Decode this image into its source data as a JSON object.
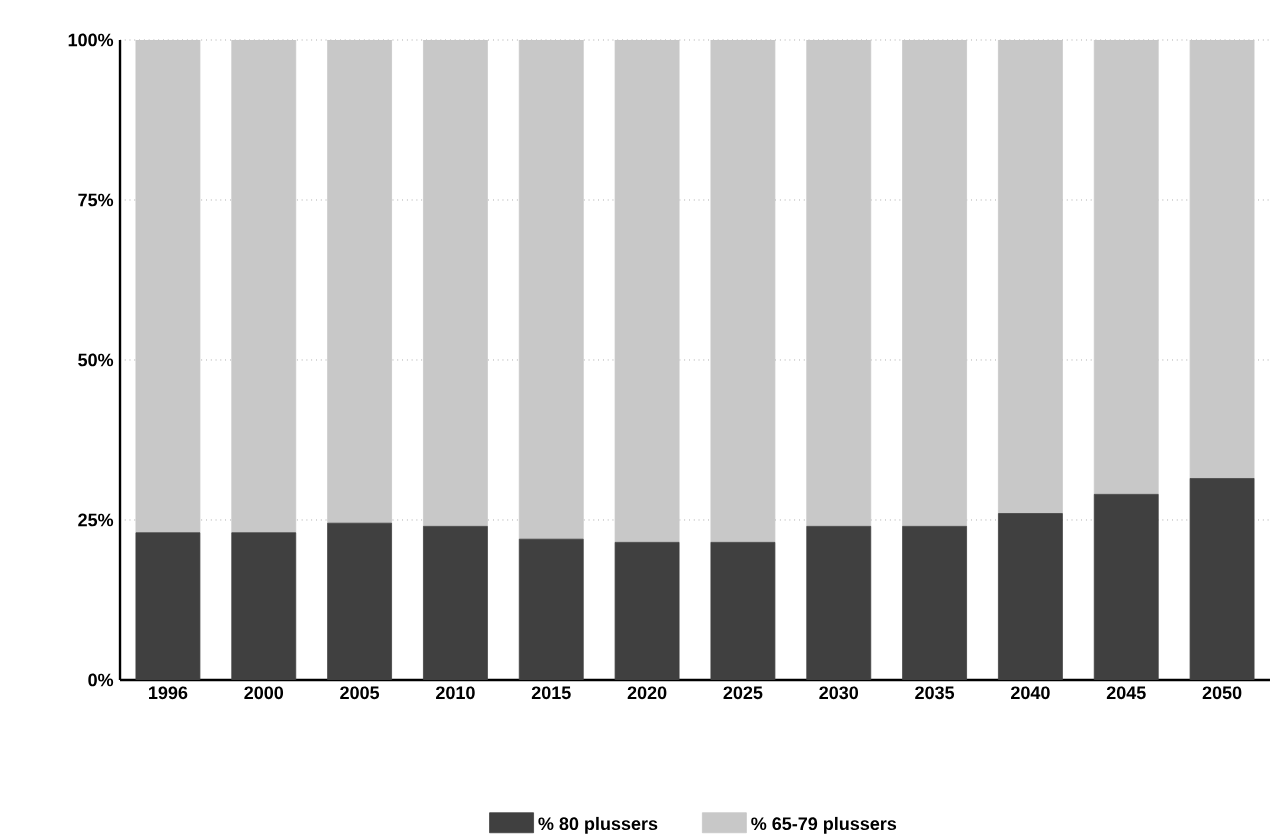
{
  "chart_data": {
    "type": "bar",
    "stacked": true,
    "categories": [
      "1996",
      "2000",
      "2005",
      "2010",
      "2015",
      "2020",
      "2025",
      "2030",
      "2035",
      "2040",
      "2045",
      "2050"
    ],
    "series": [
      {
        "name": "% 80 plussers",
        "color": "#404040",
        "values": [
          23,
          23,
          24.5,
          24,
          22,
          21.5,
          21.5,
          24,
          24,
          26,
          29,
          31.5
        ]
      },
      {
        "name": "% 65-79 plussers",
        "color": "#c8c8c8",
        "values": [
          77,
          77,
          75.5,
          76,
          78,
          78.5,
          78.5,
          76,
          76,
          74,
          71,
          68.5
        ]
      }
    ],
    "ylim": [
      0,
      100
    ],
    "yticks": [
      {
        "value": 0,
        "label": "0%"
      },
      {
        "value": 25,
        "label": "25%"
      },
      {
        "value": 50,
        "label": "50%"
      },
      {
        "value": 75,
        "label": "75%"
      },
      {
        "value": 100,
        "label": "100%"
      }
    ],
    "grid": "y",
    "legend": "bottom"
  }
}
